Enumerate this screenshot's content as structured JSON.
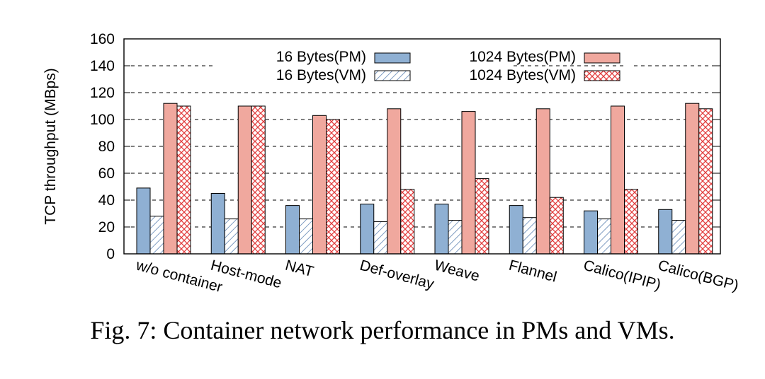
{
  "caption": "Fig. 7: Container network performance in PMs and VMs.",
  "colors": {
    "pm16": "#8fb0d3",
    "vm16_stroke": "#5f84b3",
    "pm1024": "#f0a89e",
    "vm1024_stroke": "#e23d3d",
    "edge": "#000000"
  },
  "chart_data": {
    "type": "bar",
    "title": "",
    "xlabel": "",
    "ylabel": "TCP throughput (MBps)",
    "ylim": [
      0,
      160
    ],
    "yticks": [
      0,
      20,
      40,
      60,
      80,
      100,
      120,
      140,
      160
    ],
    "grid": "horizontal dashed",
    "legend_position": "top",
    "categories": [
      "w/o container",
      "Host-mode",
      "NAT",
      "Def-overlay",
      "Weave",
      "Flannel",
      "Calico(IPIP)",
      "Calico(BGP)"
    ],
    "series": [
      {
        "name": "16 Bytes(PM)",
        "values": [
          49,
          45,
          36,
          37,
          37,
          36,
          32,
          33
        ]
      },
      {
        "name": "16 Bytes(VM)",
        "values": [
          28,
          26,
          26,
          24,
          25,
          27,
          26,
          25
        ]
      },
      {
        "name": "1024 Bytes(PM)",
        "values": [
          112,
          110,
          103,
          108,
          106,
          108,
          110,
          112
        ]
      },
      {
        "name": "1024 Bytes(VM)",
        "values": [
          110,
          110,
          100,
          48,
          56,
          42,
          48,
          108
        ]
      }
    ]
  }
}
